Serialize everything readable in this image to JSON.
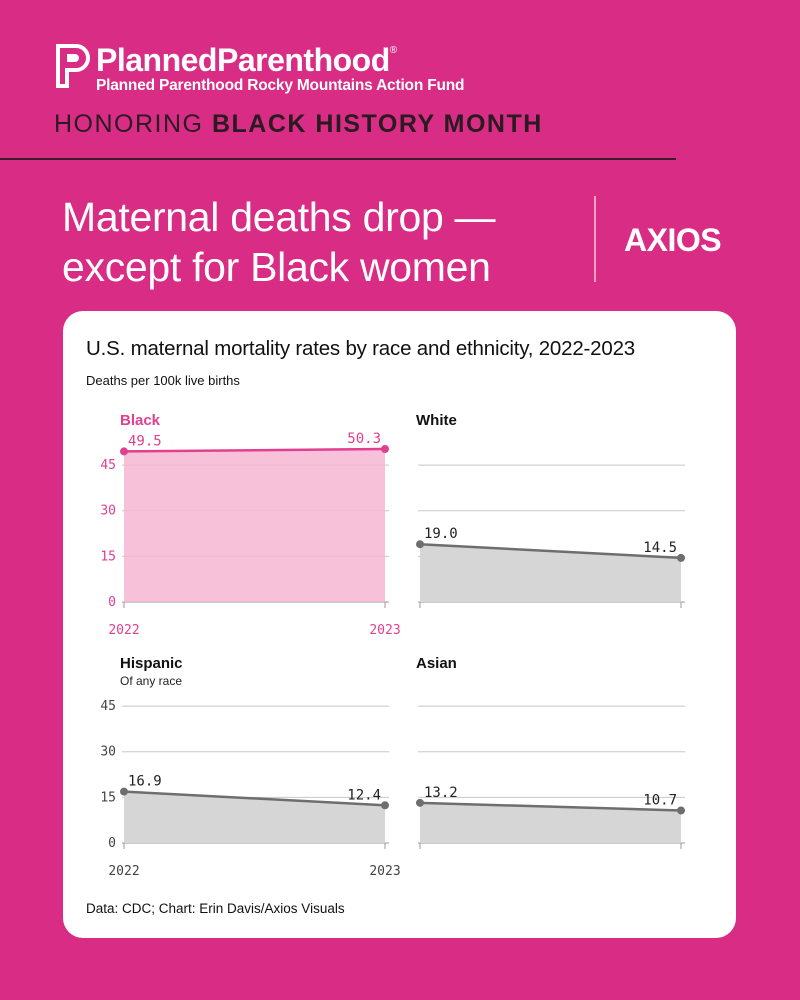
{
  "brand": {
    "name": "PlannedParenthood",
    "registered": "®",
    "subtitle": "Planned Parenthood Rocky Mountains Action Fund"
  },
  "banner": {
    "prefix": "HONORING",
    "emphasis": "BLACK HISTORY MONTH"
  },
  "headline": {
    "line1": "Maternal deaths drop —",
    "line2": "except for Black women"
  },
  "publisher_logo": "AXIOS",
  "colors": {
    "background": "#d92c84",
    "black_series": "#e0408f",
    "black_fill": "#f6b6d4",
    "other_series": "#6e6e6e",
    "other_fill": "#d6d6d6",
    "grid": "#c8c8c8"
  },
  "chart_data": {
    "type": "area",
    "title": "U.S. maternal mortality rates by race and ethnicity, 2022-2023",
    "ylabel": "Deaths per 100k live births",
    "source": "Data: CDC; Chart: Erin Davis/Axios Visuals",
    "x": [
      "2022",
      "2023"
    ],
    "ylim": [
      0,
      50.3
    ],
    "yticks": [
      "0",
      "15",
      "30",
      "45"
    ],
    "panels": [
      {
        "name": "Black",
        "subtitle": "",
        "values": [
          49.5,
          50.3
        ],
        "labels": [
          "49.5",
          "50.3"
        ],
        "highlight": true,
        "show_y_ticks": true,
        "show_x_ticks": true
      },
      {
        "name": "White",
        "subtitle": "",
        "values": [
          19.0,
          14.5
        ],
        "labels": [
          "19.0",
          "14.5"
        ],
        "highlight": false,
        "show_y_ticks": false,
        "show_x_ticks": false
      },
      {
        "name": "Hispanic",
        "subtitle": "Of any race",
        "values": [
          16.9,
          12.4
        ],
        "labels": [
          "16.9",
          "12.4"
        ],
        "highlight": false,
        "show_y_ticks": true,
        "show_x_ticks": true
      },
      {
        "name": "Asian",
        "subtitle": "",
        "values": [
          13.2,
          10.7
        ],
        "labels": [
          "13.2",
          "10.7"
        ],
        "highlight": false,
        "show_y_ticks": false,
        "show_x_ticks": false
      }
    ]
  }
}
